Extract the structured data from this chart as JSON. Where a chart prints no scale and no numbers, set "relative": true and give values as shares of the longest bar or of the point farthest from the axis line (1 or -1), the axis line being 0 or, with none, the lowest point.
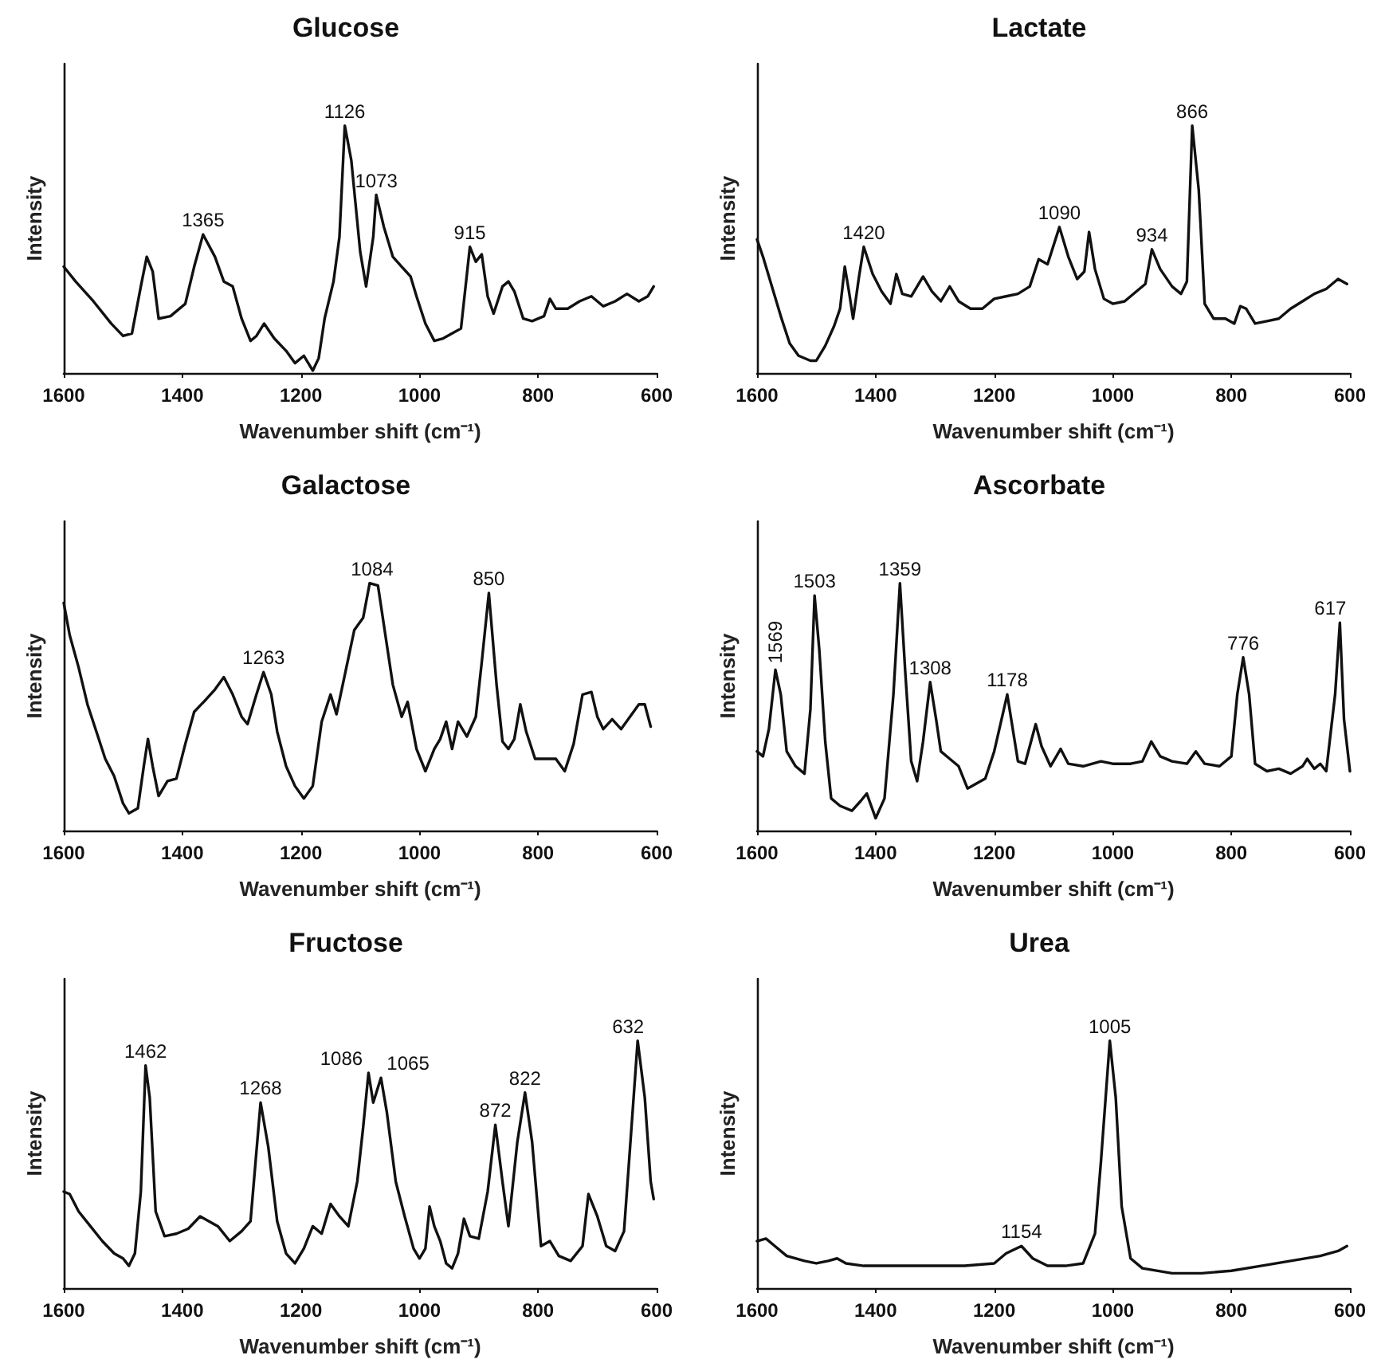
{
  "chart_data": [
    {
      "type": "line",
      "title": "Glucose",
      "xlabel": "Wavenumber shift (cm⁻¹)",
      "ylabel": "Intensity",
      "relative": true,
      "color": "#111111",
      "xlim": [
        1600,
        600
      ],
      "xticks": [
        1600,
        1400,
        1200,
        1000,
        800,
        600
      ],
      "x": [
        1600,
        1580,
        1550,
        1520,
        1500,
        1485,
        1470,
        1460,
        1450,
        1440,
        1420,
        1395,
        1380,
        1365,
        1345,
        1330,
        1315,
        1300,
        1285,
        1275,
        1262,
        1245,
        1225,
        1210,
        1195,
        1180,
        1170,
        1160,
        1145,
        1135,
        1126,
        1115,
        1100,
        1090,
        1078,
        1073,
        1060,
        1045,
        1030,
        1015,
        1005,
        990,
        975,
        960,
        945,
        930,
        915,
        905,
        895,
        885,
        875,
        860,
        850,
        840,
        825,
        810,
        790,
        780,
        770,
        750,
        730,
        710,
        690,
        670,
        650,
        630,
        615,
        605
      ],
      "values": [
        0.43,
        0.37,
        0.29,
        0.2,
        0.15,
        0.16,
        0.35,
        0.47,
        0.41,
        0.22,
        0.23,
        0.28,
        0.43,
        0.56,
        0.47,
        0.37,
        0.35,
        0.22,
        0.13,
        0.15,
        0.2,
        0.14,
        0.09,
        0.04,
        0.07,
        0.01,
        0.06,
        0.22,
        0.37,
        0.55,
        1.0,
        0.86,
        0.49,
        0.35,
        0.55,
        0.72,
        0.59,
        0.47,
        0.43,
        0.39,
        0.31,
        0.2,
        0.13,
        0.14,
        0.16,
        0.18,
        0.51,
        0.45,
        0.48,
        0.31,
        0.24,
        0.35,
        0.37,
        0.33,
        0.22,
        0.21,
        0.23,
        0.3,
        0.26,
        0.26,
        0.29,
        0.31,
        0.27,
        0.29,
        0.32,
        0.29,
        0.31,
        0.35
      ],
      "annotations": [
        {
          "text": "1365",
          "x": 1365,
          "y": 0.56
        },
        {
          "text": "1126",
          "x": 1126,
          "y": 1.0
        },
        {
          "text": "1073",
          "x": 1073,
          "y": 0.72
        },
        {
          "text": "915",
          "x": 915,
          "y": 0.51
        }
      ]
    },
    {
      "type": "line",
      "title": "Lactate",
      "xlabel": "Wavenumber shift (cm⁻¹)",
      "ylabel": "Intensity",
      "relative": true,
      "color": "#111111",
      "xlim": [
        1600,
        600
      ],
      "xticks": [
        1600,
        1400,
        1200,
        1000,
        800,
        600
      ],
      "x": [
        1600,
        1590,
        1575,
        1560,
        1545,
        1530,
        1510,
        1500,
        1485,
        1470,
        1460,
        1452,
        1445,
        1438,
        1428,
        1420,
        1405,
        1390,
        1375,
        1365,
        1355,
        1340,
        1320,
        1305,
        1290,
        1275,
        1260,
        1240,
        1220,
        1200,
        1180,
        1160,
        1140,
        1125,
        1110,
        1090,
        1075,
        1060,
        1048,
        1040,
        1030,
        1015,
        1000,
        980,
        960,
        945,
        934,
        920,
        900,
        885,
        875,
        866,
        855,
        845,
        830,
        810,
        795,
        785,
        775,
        760,
        740,
        720,
        700,
        680,
        660,
        640,
        620,
        605
      ],
      "values": [
        0.54,
        0.47,
        0.35,
        0.23,
        0.12,
        0.07,
        0.05,
        0.05,
        0.11,
        0.19,
        0.26,
        0.43,
        0.33,
        0.22,
        0.39,
        0.51,
        0.4,
        0.33,
        0.28,
        0.4,
        0.32,
        0.31,
        0.39,
        0.33,
        0.29,
        0.35,
        0.29,
        0.26,
        0.26,
        0.3,
        0.31,
        0.32,
        0.35,
        0.46,
        0.44,
        0.59,
        0.47,
        0.38,
        0.41,
        0.57,
        0.42,
        0.3,
        0.28,
        0.29,
        0.33,
        0.36,
        0.5,
        0.42,
        0.35,
        0.32,
        0.37,
        1.0,
        0.74,
        0.28,
        0.22,
        0.22,
        0.2,
        0.27,
        0.26,
        0.2,
        0.21,
        0.22,
        0.26,
        0.29,
        0.32,
        0.34,
        0.38,
        0.36
      ],
      "annotations": [
        {
          "text": "1420",
          "x": 1420,
          "y": 0.51
        },
        {
          "text": "1090",
          "x": 1090,
          "y": 0.59
        },
        {
          "text": "934",
          "x": 934,
          "y": 0.5
        },
        {
          "text": "866",
          "x": 866,
          "y": 1.0
        }
      ]
    },
    {
      "type": "line",
      "title": "Galactose",
      "xlabel": "Wavenumber shift (cm⁻¹)",
      "ylabel": "Intensity",
      "relative": true,
      "color": "#111111",
      "xlim": [
        1600,
        600
      ],
      "xticks": [
        1600,
        1400,
        1200,
        1000,
        800,
        600
      ],
      "x": [
        1600,
        1590,
        1575,
        1560,
        1545,
        1530,
        1515,
        1500,
        1490,
        1475,
        1465,
        1458,
        1450,
        1440,
        1425,
        1410,
        1395,
        1380,
        1360,
        1345,
        1330,
        1315,
        1300,
        1290,
        1275,
        1263,
        1250,
        1240,
        1225,
        1210,
        1195,
        1180,
        1165,
        1150,
        1140,
        1125,
        1110,
        1095,
        1084,
        1070,
        1055,
        1045,
        1030,
        1020,
        1005,
        990,
        975,
        965,
        955,
        945,
        935,
        920,
        905,
        895,
        883,
        870,
        860,
        850,
        840,
        830,
        820,
        805,
        790,
        770,
        755,
        740,
        725,
        710,
        700,
        690,
        675,
        660,
        645,
        630,
        620,
        610
      ],
      "values": [
        0.92,
        0.79,
        0.66,
        0.51,
        0.4,
        0.29,
        0.22,
        0.11,
        0.07,
        0.09,
        0.26,
        0.37,
        0.26,
        0.14,
        0.2,
        0.21,
        0.35,
        0.48,
        0.53,
        0.57,
        0.62,
        0.55,
        0.46,
        0.43,
        0.55,
        0.64,
        0.55,
        0.4,
        0.26,
        0.18,
        0.13,
        0.18,
        0.44,
        0.55,
        0.47,
        0.64,
        0.81,
        0.86,
        1.0,
        0.99,
        0.75,
        0.59,
        0.46,
        0.52,
        0.33,
        0.24,
        0.33,
        0.37,
        0.44,
        0.33,
        0.44,
        0.38,
        0.46,
        0.68,
        0.96,
        0.59,
        0.36,
        0.33,
        0.37,
        0.51,
        0.4,
        0.29,
        0.29,
        0.29,
        0.24,
        0.35,
        0.55,
        0.56,
        0.46,
        0.41,
        0.45,
        0.41,
        0.46,
        0.51,
        0.51,
        0.42
      ],
      "annotations": [
        {
          "text": "1263",
          "x": 1263,
          "y": 0.64
        },
        {
          "text": "1084",
          "x": 1080,
          "y": 1.0
        },
        {
          "text": "850",
          "x": 883,
          "y": 0.96
        }
      ]
    },
    {
      "type": "line",
      "title": "Ascorbate",
      "xlabel": "Wavenumber shift (cm⁻¹)",
      "ylabel": "Intensity",
      "relative": true,
      "color": "#111111",
      "xlim": [
        1600,
        600
      ],
      "xticks": [
        1600,
        1400,
        1200,
        1000,
        800,
        600
      ],
      "x": [
        1600,
        1590,
        1580,
        1569,
        1560,
        1550,
        1535,
        1520,
        1510,
        1503,
        1495,
        1485,
        1475,
        1460,
        1440,
        1425,
        1415,
        1400,
        1385,
        1370,
        1359,
        1350,
        1340,
        1330,
        1320,
        1308,
        1298,
        1290,
        1275,
        1260,
        1245,
        1230,
        1215,
        1200,
        1178,
        1170,
        1160,
        1148,
        1130,
        1120,
        1105,
        1088,
        1075,
        1050,
        1020,
        1000,
        970,
        950,
        935,
        920,
        900,
        875,
        860,
        845,
        820,
        800,
        790,
        780,
        770,
        760,
        740,
        720,
        700,
        680,
        672,
        660,
        650,
        640,
        625,
        617,
        610,
        600
      ],
      "values": [
        0.32,
        0.3,
        0.41,
        0.65,
        0.55,
        0.32,
        0.26,
        0.23,
        0.49,
        0.95,
        0.73,
        0.36,
        0.13,
        0.1,
        0.08,
        0.12,
        0.15,
        0.05,
        0.13,
        0.55,
        1.0,
        0.64,
        0.28,
        0.2,
        0.36,
        0.6,
        0.45,
        0.32,
        0.29,
        0.26,
        0.17,
        0.19,
        0.21,
        0.32,
        0.55,
        0.43,
        0.28,
        0.27,
        0.43,
        0.34,
        0.26,
        0.33,
        0.27,
        0.26,
        0.28,
        0.27,
        0.27,
        0.28,
        0.36,
        0.3,
        0.28,
        0.27,
        0.32,
        0.27,
        0.26,
        0.3,
        0.55,
        0.7,
        0.55,
        0.27,
        0.24,
        0.25,
        0.23,
        0.26,
        0.29,
        0.25,
        0.27,
        0.24,
        0.55,
        0.84,
        0.45,
        0.24
      ],
      "annotations": [
        {
          "text": "1569",
          "x": 1569,
          "y": 0.65
        },
        {
          "text": "1503",
          "x": 1503,
          "y": 0.95
        },
        {
          "text": "1359",
          "x": 1359,
          "y": 1.0
        },
        {
          "text": "1308",
          "x": 1308,
          "y": 0.6
        },
        {
          "text": "1178",
          "x": 1178,
          "y": 0.55
        },
        {
          "text": "776",
          "x": 780,
          "y": 0.7
        },
        {
          "text": "617",
          "x": 617,
          "y": 0.84
        }
      ]
    },
    {
      "type": "line",
      "title": "Fructose",
      "xlabel": "Wavenumber shift (cm⁻¹)",
      "ylabel": "Intensity",
      "relative": true,
      "color": "#111111",
      "xlim": [
        1600,
        600
      ],
      "xticks": [
        1600,
        1400,
        1200,
        1000,
        800,
        600
      ],
      "x": [
        1600,
        1590,
        1575,
        1555,
        1535,
        1515,
        1500,
        1490,
        1480,
        1470,
        1462,
        1455,
        1445,
        1430,
        1410,
        1390,
        1370,
        1355,
        1340,
        1320,
        1300,
        1285,
        1268,
        1255,
        1240,
        1225,
        1210,
        1195,
        1180,
        1165,
        1150,
        1135,
        1120,
        1105,
        1095,
        1086,
        1078,
        1065,
        1055,
        1040,
        1025,
        1010,
        1000,
        990,
        983,
        975,
        965,
        955,
        945,
        935,
        925,
        915,
        900,
        885,
        872,
        860,
        850,
        835,
        822,
        810,
        795,
        780,
        765,
        745,
        725,
        715,
        700,
        685,
        670,
        655,
        643,
        632,
        620,
        610,
        605
      ],
      "values": [
        0.39,
        0.38,
        0.31,
        0.25,
        0.19,
        0.14,
        0.12,
        0.09,
        0.14,
        0.39,
        0.9,
        0.77,
        0.31,
        0.21,
        0.22,
        0.24,
        0.29,
        0.27,
        0.25,
        0.19,
        0.23,
        0.27,
        0.75,
        0.57,
        0.27,
        0.14,
        0.1,
        0.16,
        0.25,
        0.22,
        0.34,
        0.29,
        0.25,
        0.43,
        0.65,
        0.87,
        0.75,
        0.85,
        0.71,
        0.43,
        0.29,
        0.16,
        0.12,
        0.16,
        0.33,
        0.25,
        0.19,
        0.1,
        0.08,
        0.14,
        0.28,
        0.21,
        0.2,
        0.39,
        0.66,
        0.43,
        0.25,
        0.59,
        0.79,
        0.59,
        0.17,
        0.19,
        0.13,
        0.11,
        0.17,
        0.38,
        0.29,
        0.17,
        0.15,
        0.23,
        0.63,
        1.0,
        0.77,
        0.43,
        0.36
      ],
      "annotations": [
        {
          "text": "1462",
          "x": 1462,
          "y": 0.9
        },
        {
          "text": "1268",
          "x": 1268,
          "y": 0.75
        },
        {
          "text": "1086",
          "x": 1086,
          "y": 0.87
        },
        {
          "text": "1065",
          "x": 1065,
          "y": 0.85
        },
        {
          "text": "872",
          "x": 872,
          "y": 0.66
        },
        {
          "text": "822",
          "x": 822,
          "y": 0.79
        },
        {
          "text": "632",
          "x": 632,
          "y": 1.0
        }
      ]
    },
    {
      "type": "line",
      "title": "Urea",
      "xlabel": "Wavenumber shift (cm⁻¹)",
      "ylabel": "Intensity",
      "relative": true,
      "color": "#111111",
      "xlim": [
        1600,
        600
      ],
      "xticks": [
        1600,
        1400,
        1200,
        1000,
        800,
        600
      ],
      "x": [
        1600,
        1585,
        1570,
        1550,
        1520,
        1500,
        1480,
        1465,
        1450,
        1420,
        1350,
        1250,
        1200,
        1180,
        1154,
        1135,
        1110,
        1080,
        1050,
        1030,
        1020,
        1005,
        995,
        985,
        970,
        950,
        900,
        850,
        800,
        750,
        700,
        650,
        620,
        605
      ],
      "values": [
        0.19,
        0.2,
        0.17,
        0.13,
        0.11,
        0.1,
        0.11,
        0.12,
        0.1,
        0.09,
        0.09,
        0.09,
        0.1,
        0.14,
        0.17,
        0.12,
        0.09,
        0.09,
        0.1,
        0.22,
        0.51,
        1.0,
        0.77,
        0.33,
        0.12,
        0.08,
        0.06,
        0.06,
        0.07,
        0.09,
        0.11,
        0.13,
        0.15,
        0.17
      ],
      "annotations": [
        {
          "text": "1154",
          "x": 1154,
          "y": 0.17
        },
        {
          "text": "1005",
          "x": 1005,
          "y": 1.0
        }
      ]
    }
  ]
}
